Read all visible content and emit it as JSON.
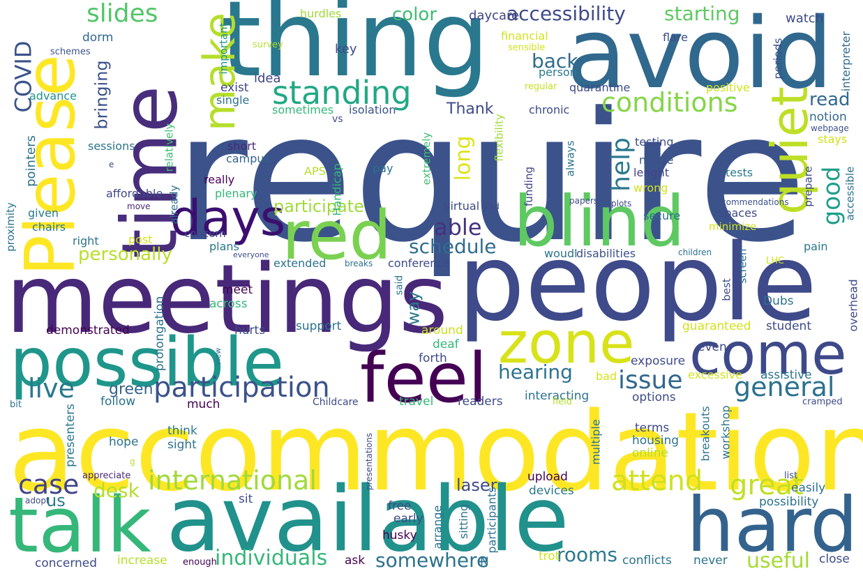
{
  "words": [
    {
      "text": "require",
      "color": "#3b528b"
    },
    {
      "text": "accommodation",
      "color": "#fde725"
    },
    {
      "text": "meetings",
      "color": "#482878"
    },
    {
      "text": "people",
      "color": "#3e4a89"
    },
    {
      "text": "available",
      "color": "#21918c"
    },
    {
      "text": "thing",
      "color": "#2a788e"
    },
    {
      "text": "avoid",
      "color": "#31688e"
    },
    {
      "text": "time",
      "color": "#472d7b"
    },
    {
      "text": "Please",
      "color": "#fde725"
    },
    {
      "text": "possible",
      "color": "#1f968b"
    },
    {
      "text": "talk",
      "color": "#35b779"
    },
    {
      "text": "hard",
      "color": "#33638d"
    },
    {
      "text": "blind",
      "color": "#5ec962"
    },
    {
      "text": "red",
      "color": "#7ad151"
    },
    {
      "text": "feel",
      "color": "#440154"
    },
    {
      "text": "come",
      "color": "#3e4989"
    },
    {
      "text": "zone",
      "color": "#d8e219"
    },
    {
      "text": "days",
      "color": "#3b0f70"
    },
    {
      "text": "quiet",
      "color": "#bddf26"
    },
    {
      "text": "make",
      "color": "#b5de2b"
    },
    {
      "text": "standing",
      "color": "#22a884"
    },
    {
      "text": "participation",
      "color": "#3b528b"
    },
    {
      "text": "international",
      "color": "#a0da39"
    },
    {
      "text": "conditions",
      "color": "#86d549"
    },
    {
      "text": "great",
      "color": "#c2df23"
    },
    {
      "text": "attend",
      "color": "#d0e11c"
    },
    {
      "text": "general",
      "color": "#2c728e"
    },
    {
      "text": "issue",
      "color": "#31688e"
    },
    {
      "text": "slides",
      "color": "#52c569"
    },
    {
      "text": "accessibility",
      "color": "#3e4a89"
    },
    {
      "text": "starting",
      "color": "#5ec962"
    },
    {
      "text": "color",
      "color": "#3fbc73"
    },
    {
      "text": "COVID",
      "color": "#3b528b"
    },
    {
      "text": "good",
      "color": "#1f9e89"
    },
    {
      "text": "live",
      "color": "#2a788e"
    },
    {
      "text": "case",
      "color": "#414487"
    },
    {
      "text": "rooms",
      "color": "#2a788e"
    },
    {
      "text": "individuals",
      "color": "#35b779"
    },
    {
      "text": "somewhere",
      "color": "#2c728e"
    },
    {
      "text": "useful",
      "color": "#a5db36"
    },
    {
      "text": "help",
      "color": "#2a788e"
    },
    {
      "text": "hearing",
      "color": "#2c728e"
    },
    {
      "text": "schedule",
      "color": "#2f6c8e"
    },
    {
      "text": "able",
      "color": "#46327e"
    },
    {
      "text": "long",
      "color": "#dde318"
    },
    {
      "text": "participate",
      "color": "#9fda3a"
    },
    {
      "text": "personally",
      "color": "#b8de29"
    },
    {
      "text": "back",
      "color": "#2f6c8e"
    },
    {
      "text": "read",
      "color": "#31688e"
    },
    {
      "text": "Thank",
      "color": "#3e4a89"
    },
    {
      "text": "desk",
      "color": "#b5de2b"
    },
    {
      "text": "laser",
      "color": "#3e4a89"
    },
    {
      "text": "us",
      "color": "#2a788e"
    },
    {
      "text": "bringing",
      "color": "#3b528b"
    },
    {
      "text": "green",
      "color": "#33638d"
    },
    {
      "text": "way",
      "color": "#2a788e"
    },
    {
      "text": "watch",
      "color": "#3e4a89"
    },
    {
      "text": "daycare",
      "color": "#414487"
    },
    {
      "text": "hurdles",
      "color": "#a0da39"
    },
    {
      "text": "financial",
      "color": "#d2e21b"
    },
    {
      "text": "flare",
      "color": "#3e4a89"
    },
    {
      "text": "sensible",
      "color": "#d2e21b"
    },
    {
      "text": "survey",
      "color": "#b5de2b"
    },
    {
      "text": "important",
      "color": "#1f968b"
    },
    {
      "text": "key",
      "color": "#3e4a89"
    },
    {
      "text": "dorm",
      "color": "#31688e"
    },
    {
      "text": "schemes",
      "color": "#3b528b"
    },
    {
      "text": "advance",
      "color": "#21918c"
    },
    {
      "text": "idea",
      "color": "#414487"
    },
    {
      "text": "person",
      "color": "#2a788e"
    },
    {
      "text": "regular",
      "color": "#c8e020"
    },
    {
      "text": "quarantine",
      "color": "#3e4a89"
    },
    {
      "text": "positive",
      "color": "#d2e21b"
    },
    {
      "text": "periods",
      "color": "#3b528b"
    },
    {
      "text": "interpreter",
      "color": "#31688e"
    },
    {
      "text": "exist",
      "color": "#414487"
    },
    {
      "text": "single",
      "color": "#2c728e"
    },
    {
      "text": "sometimes",
      "color": "#35b779"
    },
    {
      "text": "isolation",
      "color": "#3b528b"
    },
    {
      "text": "chronic",
      "color": "#3e4a89"
    },
    {
      "text": "notion",
      "color": "#31688e"
    },
    {
      "text": "webpage",
      "color": "#3b528b"
    },
    {
      "text": "vs",
      "color": "#3e4a89"
    },
    {
      "text": "sessions",
      "color": "#2c728e"
    },
    {
      "text": "pointers",
      "color": "#2c728e"
    },
    {
      "text": "relatively",
      "color": "#3fbc73"
    },
    {
      "text": "short",
      "color": "#482878"
    },
    {
      "text": "campus",
      "color": "#33638d"
    },
    {
      "text": "extremely",
      "color": "#3fbc73"
    },
    {
      "text": "flexibility",
      "color": "#a0da39"
    },
    {
      "text": "testing",
      "color": "#3e4a89"
    },
    {
      "text": "stays",
      "color": "#d2e21b"
    },
    {
      "text": "already",
      "color": "#2c728e"
    },
    {
      "text": "APS",
      "color": "#b5de2b"
    },
    {
      "text": "Handicap",
      "color": "#35b779"
    },
    {
      "text": "pay",
      "color": "#2c728e"
    },
    {
      "text": "funding",
      "color": "#414487"
    },
    {
      "text": "always",
      "color": "#2c728e"
    },
    {
      "text": "notice",
      "color": "#3b528b"
    },
    {
      "text": "lenght",
      "color": "#414487"
    },
    {
      "text": "tests",
      "color": "#2a788e"
    },
    {
      "text": "really",
      "color": "#440154"
    },
    {
      "text": "affordable",
      "color": "#3e4a89"
    },
    {
      "text": "plenary",
      "color": "#35b779"
    },
    {
      "text": "wrong",
      "color": "#d2e21b"
    },
    {
      "text": "prepare",
      "color": "#3e4a89"
    },
    {
      "text": "accessible",
      "color": "#2c728e"
    },
    {
      "text": "move",
      "color": "#482878"
    },
    {
      "text": "virtual",
      "color": "#3e4a89"
    },
    {
      "text": "glad",
      "color": "#3e4a89"
    },
    {
      "text": "papers",
      "color": "#3e4a89"
    },
    {
      "text": "plots",
      "color": "#3e4a89"
    },
    {
      "text": "secure",
      "color": "#2c728e"
    },
    {
      "text": "recommendations",
      "color": "#3b528b"
    },
    {
      "text": "spaces",
      "color": "#3e4a89"
    },
    {
      "text": "minimize",
      "color": "#d2e21b"
    },
    {
      "text": "proximity",
      "color": "#2c728e"
    },
    {
      "text": "given",
      "color": "#2a788e"
    },
    {
      "text": "chairs",
      "color": "#2a788e"
    },
    {
      "text": "concern",
      "color": "#414487"
    },
    {
      "text": "right",
      "color": "#2c728e"
    },
    {
      "text": "post",
      "color": "#d2e21b"
    },
    {
      "text": "plans",
      "color": "#2a788e"
    },
    {
      "text": "everyone",
      "color": "#3e4a89"
    },
    {
      "text": "extended",
      "color": "#2c728e"
    },
    {
      "text": "breaks",
      "color": "#2c728e"
    },
    {
      "text": "conference",
      "color": "#3e4a89"
    },
    {
      "text": "woudl",
      "color": "#2c728e"
    },
    {
      "text": "disabilities",
      "color": "#3b528b"
    },
    {
      "text": "children",
      "color": "#2c728e"
    },
    {
      "text": "pain",
      "color": "#2a788e"
    },
    {
      "text": "LHC",
      "color": "#d2e21b"
    },
    {
      "text": "screen",
      "color": "#2c728e"
    },
    {
      "text": "best",
      "color": "#3e4a89"
    },
    {
      "text": "prolongation",
      "color": "#2c728e"
    },
    {
      "text": "meet",
      "color": "#440154"
    },
    {
      "text": "across",
      "color": "#35b779"
    },
    {
      "text": "demonstrated",
      "color": "#440154"
    },
    {
      "text": "hurts",
      "color": "#3e4a89"
    },
    {
      "text": "support",
      "color": "#2c728e"
    },
    {
      "text": "said",
      "color": "#2c728e"
    },
    {
      "text": "around",
      "color": "#c8e020"
    },
    {
      "text": "deaf",
      "color": "#35b779"
    },
    {
      "text": "Dubs",
      "color": "#2c728e"
    },
    {
      "text": "guaranteed",
      "color": "#d2e21b"
    },
    {
      "text": "student",
      "color": "#3e4a89"
    },
    {
      "text": "overhead",
      "color": "#3e4a89"
    },
    {
      "text": "even",
      "color": "#3e4a89"
    },
    {
      "text": "exposure",
      "color": "#3e4a89"
    },
    {
      "text": "forth",
      "color": "#3e4a89"
    },
    {
      "text": "view",
      "color": "#2c728e"
    },
    {
      "text": "excessive",
      "color": "#d2e21b"
    },
    {
      "text": "assistive",
      "color": "#2c728e"
    },
    {
      "text": "bad",
      "color": "#d2e21b"
    },
    {
      "text": "interacting",
      "color": "#2c728e"
    },
    {
      "text": "options",
      "color": "#3e4a89"
    },
    {
      "text": "follow",
      "color": "#2c728e"
    },
    {
      "text": "much",
      "color": "#440154"
    },
    {
      "text": "Childcare",
      "color": "#3e4a89"
    },
    {
      "text": "travel",
      "color": "#35b779"
    },
    {
      "text": "readers",
      "color": "#3e4a89"
    },
    {
      "text": "field",
      "color": "#b5de2b"
    },
    {
      "text": "cramped",
      "color": "#3e4a89"
    },
    {
      "text": "bit",
      "color": "#2c728e"
    },
    {
      "text": "presenters",
      "color": "#2a788e"
    },
    {
      "text": "think",
      "color": "#2a788e"
    },
    {
      "text": "sight",
      "color": "#2c728e"
    },
    {
      "text": "hope",
      "color": "#2c728e"
    },
    {
      "text": "multiple",
      "color": "#2c728e"
    },
    {
      "text": "terms",
      "color": "#3e4a89"
    },
    {
      "text": "housing",
      "color": "#2c728e"
    },
    {
      "text": "online",
      "color": "#b5de2b"
    },
    {
      "text": "breakouts",
      "color": "#2c728e"
    },
    {
      "text": "workshop",
      "color": "#2c728e"
    },
    {
      "text": "presentations",
      "color": "#3e4a89"
    },
    {
      "text": "list",
      "color": "#3e4a89"
    },
    {
      "text": "appreciate",
      "color": "#482878"
    },
    {
      "text": "upload",
      "color": "#440154"
    },
    {
      "text": "easily",
      "color": "#2c728e"
    },
    {
      "text": "adopt",
      "color": "#3e4a89"
    },
    {
      "text": "sit",
      "color": "#3e4a89"
    },
    {
      "text": "devices",
      "color": "#2a788e"
    },
    {
      "text": "possibility",
      "color": "#2c728e"
    },
    {
      "text": "free",
      "color": "#3e4a89"
    },
    {
      "text": "arrange",
      "color": "#2c728e"
    },
    {
      "text": "sitting",
      "color": "#2c728e"
    },
    {
      "text": "participants",
      "color": "#2c728e"
    },
    {
      "text": "early",
      "color": "#3e4a89"
    },
    {
      "text": "husky",
      "color": "#440154"
    },
    {
      "text": "concerned",
      "color": "#3e4a89"
    },
    {
      "text": "increase",
      "color": "#b5de2b"
    },
    {
      "text": "enough",
      "color": "#440154"
    },
    {
      "text": "ask",
      "color": "#440154"
    },
    {
      "text": "N",
      "color": "#2c728e"
    },
    {
      "text": "trot",
      "color": "#d2e21b"
    },
    {
      "text": "conflicts",
      "color": "#2c728e"
    },
    {
      "text": "never",
      "color": "#2c728e"
    },
    {
      "text": "close",
      "color": "#3e4a89"
    },
    {
      "text": "e",
      "color": "#3e4a89"
    },
    {
      "text": "g",
      "color": "#b5de2b"
    }
  ]
}
